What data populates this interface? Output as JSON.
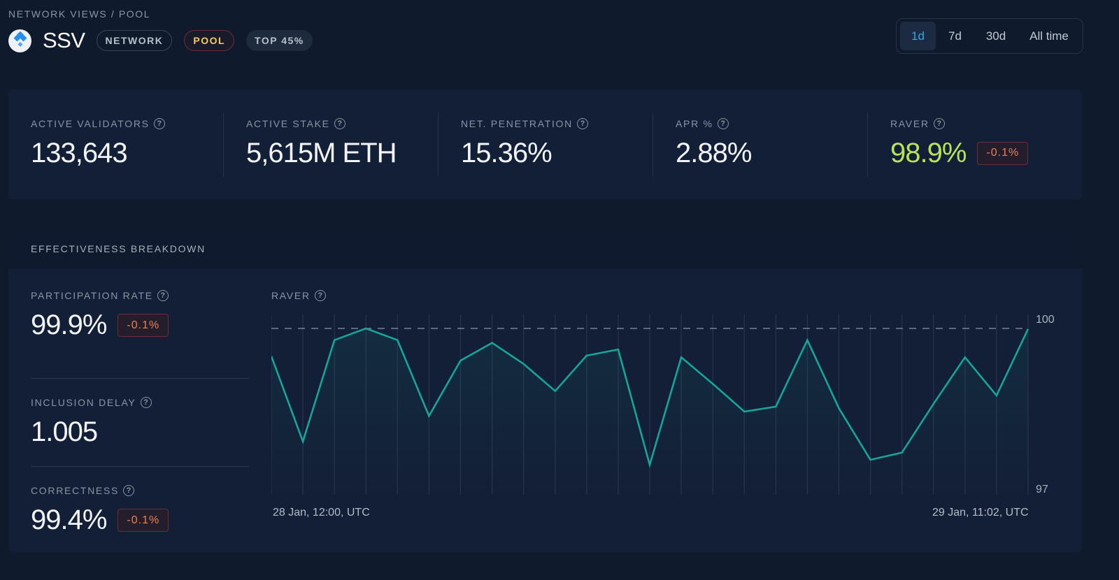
{
  "breadcrumb": "NETWORK VIEWS / POOL",
  "header": {
    "logo_icon": "ssv-logo-icon",
    "title": "SSV",
    "tags": [
      {
        "label": "NETWORK",
        "kind": "outline"
      },
      {
        "label": "POOL",
        "kind": "pool"
      },
      {
        "label": "TOP 45%",
        "kind": "filled"
      }
    ]
  },
  "time_range": {
    "options": [
      "1d",
      "7d",
      "30d",
      "All time"
    ],
    "selected": "1d",
    "accent": "#2ea8e2"
  },
  "stats": [
    {
      "label": "ACTIVE VALIDATORS",
      "value": "133,643",
      "help_icon": "help-icon"
    },
    {
      "label": "ACTIVE STAKE",
      "value": "5,615M ETH",
      "help_icon": "help-icon"
    },
    {
      "label": "NET. PENETRATION",
      "value": "15.36%",
      "help_icon": "help-icon"
    },
    {
      "label": "APR %",
      "value": "2.88%",
      "help_icon": "help-icon"
    },
    {
      "label": "RAVER",
      "value": "98.9%",
      "delta": "-0.1%",
      "value_color": "#b6e35a",
      "help_icon": "help-icon"
    }
  ],
  "effectiveness": {
    "title": "EFFECTIVENESS BREAKDOWN",
    "metrics": [
      {
        "label": "PARTICIPATION RATE",
        "value": "99.9%",
        "delta": "-0.1%"
      },
      {
        "label": "INCLUSION DELAY",
        "value": "1.005"
      },
      {
        "label": "CORRECTNESS",
        "value": "99.4%",
        "delta": "-0.1%"
      }
    ],
    "chart": {
      "label": "RAVER",
      "x_start": "28 Jan, 12:00, UTC",
      "x_end": "29 Jan, 11:02, UTC",
      "y_max_label": "100",
      "y_min_label": "97",
      "line_color": "#17a597"
    }
  },
  "chart_data": {
    "type": "line",
    "title": "RAVER",
    "xlabel": "",
    "ylabel": "",
    "x_start": "28 Jan, 12:00, UTC",
    "x_end": "29 Jan, 11:02, UTC",
    "ylim": [
      97,
      100
    ],
    "reference_line": 100,
    "grid": "vertical",
    "values": [
      99.5,
      97.96,
      99.79,
      100.0,
      99.79,
      98.42,
      99.42,
      99.74,
      99.36,
      98.87,
      99.51,
      99.62,
      97.54,
      99.48,
      99.0,
      98.5,
      98.59,
      99.79,
      98.56,
      97.63,
      97.76,
      98.64,
      99.48,
      98.79,
      99.99
    ]
  }
}
